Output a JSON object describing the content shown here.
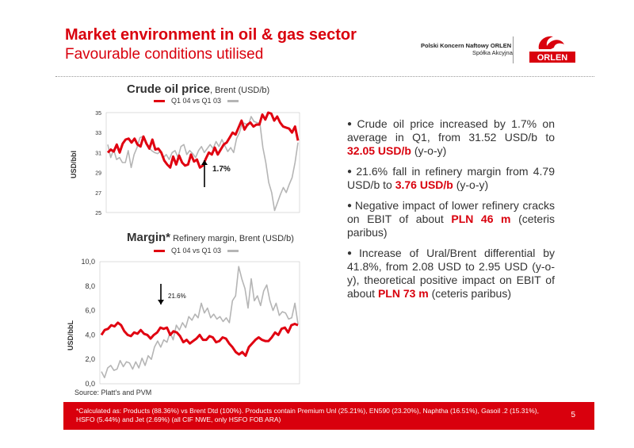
{
  "header": {
    "title": "Market environment in oil & gas sector",
    "subtitle": "Favourable conditions utilised",
    "company_line1": "Polski Koncern Naftowy ORLEN",
    "company_line2": "Spółka Akcyjna",
    "logo_text": "ORLEN"
  },
  "colors": {
    "accent": "#d9000d",
    "series_current": "#e00010",
    "series_previous": "#b5b5b5"
  },
  "charts": {
    "crude": {
      "title": "Crude oil price",
      "subtitle": ", Brent (USD/b)",
      "legend": "Q1 04 vs Q1 03",
      "ylabel": "USD/bbl",
      "annotation": "1.7%"
    },
    "margin": {
      "title": "Margin*",
      "subtitle": " Refinery margin, Brent (USD/b)",
      "legend": "Q1 04 vs Q1 03",
      "ylabel": "USD/bbL",
      "annotation": "21.6%"
    }
  },
  "chart_data": [
    {
      "type": "line",
      "title": "Crude oil price, Brent (USD/b)",
      "ylabel": "USD/bbl",
      "ylim": [
        25,
        35
      ],
      "yticks": [
        "25",
        "27",
        "29",
        "31",
        "33",
        "35"
      ],
      "grid": false,
      "series": [
        {
          "name": "Q1 04 vs Q1 03",
          "values": [
            31.0,
            31.3,
            31.1,
            31.8,
            31.0,
            31.9,
            32.3,
            32.4,
            32.0,
            32.4,
            31.8,
            31.6,
            32.6,
            31.9,
            31.4,
            32.3,
            31.3,
            31.4,
            31.0,
            30.2,
            29.8,
            29.5,
            30.6,
            29.8,
            30.7,
            30.0,
            29.7,
            29.8,
            30.8,
            30.1,
            30.3,
            29.5,
            29.7,
            30.4,
            31.0,
            30.8,
            31.5,
            30.8,
            31.3,
            31.8,
            32.0,
            32.5,
            33.0,
            32.8,
            33.5,
            34.2,
            33.3,
            33.8,
            34.0,
            33.6,
            33.8,
            33.8,
            34.8,
            34.3,
            35.0,
            34.9,
            34.2,
            34.6,
            34.0,
            33.6,
            33.5,
            33.4,
            33.0,
            33.6,
            32.2
          ]
        },
        {
          "name": "",
          "values": [
            31.8,
            30.5,
            31.3,
            30.3,
            30.5,
            30.0,
            30.0,
            31.2,
            29.5,
            30.8,
            31.5,
            32.5,
            32.6,
            32.0,
            31.5,
            31.2,
            31.0,
            30.9,
            31.1,
            30.5,
            30.8,
            30.3,
            31.0,
            31.2,
            30.5,
            31.6,
            31.8,
            30.8,
            31.2,
            30.9,
            30.5,
            31.2,
            31.6,
            31.0,
            31.4,
            31.8,
            31.4,
            32.1,
            31.6,
            32.3,
            31.7,
            31.1,
            31.5,
            31.0,
            32.4,
            33.0,
            34.0,
            33.9,
            33.7,
            34.6,
            34.1,
            34.0,
            33.9,
            31.5,
            30.0,
            28.0,
            27.0,
            25.2,
            26.0,
            26.8,
            27.5,
            27.0,
            27.8,
            28.5,
            30.0,
            32.0
          ]
        }
      ],
      "annotation": "1.7%"
    },
    {
      "type": "line",
      "title": "Refinery margin, Brent (USD/b)",
      "ylabel": "USD/bbL",
      "ylim": [
        0,
        10
      ],
      "yticks": [
        "0,0",
        "2,0",
        "4,0",
        "6,0",
        "8,0",
        "10,0"
      ],
      "grid": false,
      "series": [
        {
          "name": "Q1 04 vs Q1 03",
          "values": [
            4.0,
            4.4,
            4.5,
            4.8,
            4.7,
            5.0,
            4.8,
            4.3,
            4.0,
            3.9,
            4.2,
            4.1,
            4.4,
            4.1,
            4.0,
            3.7,
            4.0,
            4.2,
            4.6,
            4.5,
            4.6,
            4.0,
            4.3,
            4.2,
            3.9,
            3.4,
            3.6,
            3.3,
            3.5,
            3.7,
            4.0,
            3.6,
            3.6,
            3.9,
            3.8,
            3.4,
            3.5,
            3.8,
            3.7,
            3.3,
            3.0,
            2.6,
            2.4,
            2.6,
            2.3,
            3.0,
            3.3,
            3.6,
            3.8,
            3.6,
            3.5,
            3.5,
            3.8,
            4.2,
            4.0,
            4.5,
            4.6,
            4.2,
            4.8,
            4.9,
            4.8
          ]
        },
        {
          "name": "",
          "values": [
            1.0,
            0.5,
            1.3,
            1.5,
            1.1,
            1.2,
            1.9,
            1.4,
            1.8,
            1.7,
            1.2,
            1.8,
            1.3,
            2.1,
            1.5,
            2.3,
            2.0,
            3.0,
            3.5,
            3.0,
            3.6,
            3.4,
            4.2,
            3.6,
            4.8,
            4.4,
            5.0,
            4.6,
            5.5,
            5.2,
            5.7,
            5.4,
            6.6,
            5.8,
            6.2,
            5.4,
            5.7,
            5.3,
            5.5,
            5.1,
            5.4,
            5.0,
            6.8,
            7.2,
            9.6,
            8.6,
            7.8,
            6.2,
            8.6,
            6.8,
            7.2,
            6.4,
            7.6,
            8.1,
            6.8,
            6.0,
            6.6,
            5.6,
            5.9,
            5.8,
            5.3,
            5.4,
            6.6,
            4.9
          ]
        }
      ],
      "annotation": "21.6%"
    }
  ],
  "bullets": [
    {
      "text": "Crude oil price increased by 1.7% on average in Q1, from 31.52 USD/b to ",
      "highlight": "32.05 USD/b",
      "after": " (y-o-y)"
    },
    {
      "text": "21.6% fall in refinery margin from 4.79 USD/b to ",
      "highlight": "3.76 USD/b",
      "after": " (y-o-y)"
    },
    {
      "text": "Negative impact of lower refinery cracks on EBIT of about ",
      "highlight": "PLN 46 m",
      "after": " (ceteris paribus)"
    },
    {
      "text": "Increase of Ural/Brent differential by 41.8%, from 2.08 USD to 2.95 USD (y-o-y), theoretical positive impact on EBIT of about  ",
      "highlight": "PLN 73 m",
      "after": " (ceteris paribus)"
    }
  ],
  "source": "Source: Platt's and PVM",
  "footer": {
    "note": "*Calculated as: Products (88.36%) vs Brent Dtd (100%). Products contain Premium Unl (25.21%), EN590 (23.20%), Naphtha (16.51%), Gasoil .2 (15.31%), HSFO (5.44%) and Jet (2.69%) (all CIF NWE, only HSFO FOB ARA)",
    "page": "5"
  }
}
